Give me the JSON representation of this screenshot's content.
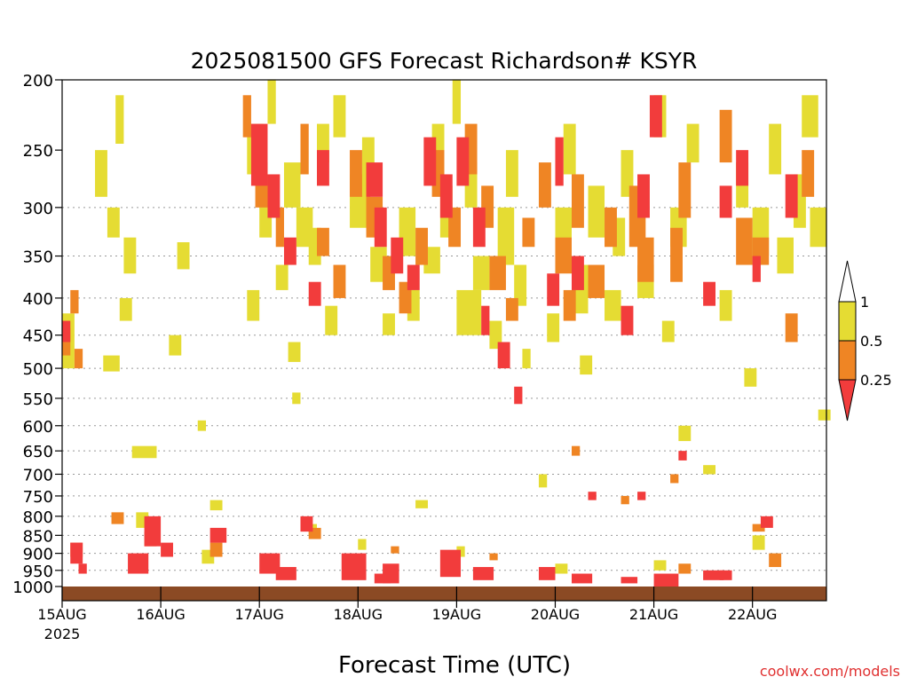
{
  "chart_data": {
    "type": "heatmap",
    "title": "2025081500 GFS Forecast Richardson# KSYR",
    "xlabel": "Forecast Time (UTC)",
    "ylabel": "",
    "credit": "coolwx.com/models",
    "x_ticks": [
      {
        "label": "15AUG",
        "sublabel": "2025",
        "hour": 0
      },
      {
        "label": "16AUG",
        "hour": 24
      },
      {
        "label": "17AUG",
        "hour": 48
      },
      {
        "label": "18AUG",
        "hour": 72
      },
      {
        "label": "19AUG",
        "hour": 96
      },
      {
        "label": "20AUG",
        "hour": 120
      },
      {
        "label": "21AUG",
        "hour": 144
      },
      {
        "label": "22AUG",
        "hour": 168
      }
    ],
    "xlim_hours": [
      0,
      186
    ],
    "y_ticks": [
      200,
      250,
      300,
      350,
      400,
      450,
      500,
      550,
      600,
      650,
      700,
      750,
      800,
      850,
      900,
      950,
      1000
    ],
    "ylim_hPa": [
      200,
      1000
    ],
    "y_scale": "log-pressure",
    "grid_levels": [
      300,
      350,
      400,
      450,
      500,
      550,
      600,
      650,
      700,
      750,
      800,
      850,
      900,
      950
    ],
    "legend": {
      "placement": "right",
      "entries": [
        {
          "label": "1",
          "color": "#ffffff"
        },
        {
          "label": "0.5",
          "color": "#e5dc33"
        },
        {
          "label": "0.25",
          "color": "#ef8524"
        },
        {
          "label": "",
          "color": "#f23c3c"
        }
      ],
      "tick_labels": [
        "1",
        "0.5",
        "0.25"
      ]
    },
    "colors": {
      "ri_lt_0_25": "#f23c3c",
      "ri_0_25_to_0_5": "#ef8524",
      "ri_0_5_to_1": "#e5dc33",
      "ground": "#8b4a24",
      "grid": "#999999"
    },
    "series": [
      {
        "name": "Ri 0.5-1",
        "color_key": "ri_0_5_to_1",
        "cells": [
          [
            0,
            420,
            3,
            80
          ],
          [
            8,
            250,
            3,
            40
          ],
          [
            11,
            300,
            3,
            30
          ],
          [
            10,
            480,
            4,
            25
          ],
          [
            13,
            210,
            2,
            35
          ],
          [
            15,
            330,
            3,
            40
          ],
          [
            14,
            400,
            3,
            30
          ],
          [
            17,
            640,
            6,
            25
          ],
          [
            26,
            450,
            3,
            30
          ],
          [
            28,
            335,
            3,
            30
          ],
          [
            33,
            590,
            2,
            20
          ],
          [
            36,
            760,
            3,
            25
          ],
          [
            45,
            230,
            4,
            40
          ],
          [
            48,
            280,
            3,
            50
          ],
          [
            45,
            390,
            3,
            40
          ],
          [
            50,
            200,
            2,
            30
          ],
          [
            52,
            360,
            3,
            30
          ],
          [
            54,
            260,
            4,
            40
          ],
          [
            55,
            460,
            3,
            30
          ],
          [
            56,
            540,
            2,
            20
          ],
          [
            60,
            320,
            3,
            40
          ],
          [
            57,
            300,
            4,
            40
          ],
          [
            62,
            230,
            3,
            30
          ],
          [
            64,
            410,
            3,
            40
          ],
          [
            70,
            270,
            5,
            50
          ],
          [
            66,
            210,
            3,
            30
          ],
          [
            73,
            240,
            3,
            40
          ],
          [
            75,
            340,
            4,
            40
          ],
          [
            78,
            420,
            3,
            30
          ],
          [
            82,
            300,
            4,
            50
          ],
          [
            84,
            390,
            3,
            40
          ],
          [
            86,
            760,
            3,
            20
          ],
          [
            90,
            230,
            3,
            30
          ],
          [
            88,
            340,
            4,
            30
          ],
          [
            92,
            280,
            3,
            50
          ],
          [
            95,
            200,
            2,
            30
          ],
          [
            96,
            390,
            6,
            60
          ],
          [
            98,
            260,
            3,
            40
          ],
          [
            100,
            350,
            4,
            40
          ],
          [
            104,
            430,
            3,
            40
          ],
          [
            106,
            300,
            4,
            60
          ],
          [
            108,
            250,
            3,
            40
          ],
          [
            110,
            360,
            3,
            50
          ],
          [
            112,
            470,
            2,
            30
          ],
          [
            116,
            700,
            2,
            30
          ],
          [
            118,
            420,
            3,
            40
          ],
          [
            120,
            300,
            4,
            50
          ],
          [
            122,
            230,
            3,
            40
          ],
          [
            124,
            360,
            4,
            60
          ],
          [
            126,
            480,
            3,
            30
          ],
          [
            128,
            280,
            4,
            50
          ],
          [
            132,
            390,
            4,
            40
          ],
          [
            134,
            310,
            3,
            40
          ],
          [
            136,
            250,
            3,
            40
          ],
          [
            140,
            360,
            4,
            40
          ],
          [
            144,
            210,
            3,
            30
          ],
          [
            146,
            430,
            3,
            30
          ],
          [
            148,
            300,
            4,
            40
          ],
          [
            150,
            600,
            3,
            30
          ],
          [
            152,
            230,
            3,
            30
          ],
          [
            156,
            680,
            3,
            20
          ],
          [
            160,
            390,
            3,
            40
          ],
          [
            164,
            260,
            3,
            40
          ],
          [
            166,
            500,
            3,
            30
          ],
          [
            168,
            300,
            4,
            50
          ],
          [
            172,
            230,
            3,
            40
          ],
          [
            174,
            330,
            4,
            40
          ],
          [
            178,
            270,
            3,
            50
          ],
          [
            180,
            210,
            4,
            30
          ],
          [
            182,
            300,
            4,
            40
          ],
          [
            184,
            570,
            3,
            20
          ],
          [
            18,
            790,
            3,
            40
          ],
          [
            34,
            890,
            3,
            40
          ],
          [
            60,
            820,
            2,
            30
          ],
          [
            72,
            860,
            2,
            30
          ],
          [
            96,
            880,
            2,
            30
          ],
          [
            120,
            930,
            3,
            30
          ],
          [
            144,
            920,
            3,
            30
          ],
          [
            168,
            850,
            3,
            40
          ]
        ]
      },
      {
        "name": "Ri 0.25-0.5",
        "color_key": "ri_0_25_to_0_5",
        "cells": [
          [
            0,
            440,
            2,
            40
          ],
          [
            2,
            390,
            2,
            30
          ],
          [
            3,
            470,
            2,
            30
          ],
          [
            44,
            210,
            2,
            30
          ],
          [
            47,
            260,
            3,
            40
          ],
          [
            52,
            300,
            2,
            40
          ],
          [
            58,
            230,
            2,
            40
          ],
          [
            62,
            320,
            3,
            30
          ],
          [
            66,
            360,
            3,
            40
          ],
          [
            70,
            250,
            3,
            40
          ],
          [
            74,
            290,
            4,
            40
          ],
          [
            78,
            350,
            3,
            40
          ],
          [
            82,
            380,
            3,
            40
          ],
          [
            86,
            320,
            3,
            40
          ],
          [
            90,
            250,
            3,
            40
          ],
          [
            94,
            300,
            3,
            40
          ],
          [
            98,
            230,
            3,
            40
          ],
          [
            102,
            280,
            3,
            40
          ],
          [
            104,
            350,
            4,
            40
          ],
          [
            108,
            400,
            3,
            30
          ],
          [
            112,
            310,
            3,
            30
          ],
          [
            116,
            260,
            3,
            40
          ],
          [
            120,
            330,
            4,
            40
          ],
          [
            122,
            390,
            3,
            40
          ],
          [
            124,
            270,
            3,
            50
          ],
          [
            128,
            360,
            4,
            40
          ],
          [
            132,
            300,
            3,
            40
          ],
          [
            138,
            280,
            4,
            60
          ],
          [
            140,
            330,
            4,
            50
          ],
          [
            148,
            320,
            3,
            60
          ],
          [
            150,
            260,
            3,
            50
          ],
          [
            160,
            220,
            3,
            40
          ],
          [
            164,
            310,
            4,
            50
          ],
          [
            168,
            330,
            4,
            30
          ],
          [
            176,
            420,
            3,
            40
          ],
          [
            180,
            250,
            3,
            40
          ],
          [
            124,
            640,
            2,
            20
          ],
          [
            136,
            750,
            2,
            20
          ],
          [
            148,
            700,
            2,
            20
          ],
          [
            168,
            820,
            3,
            20
          ],
          [
            12,
            790,
            3,
            30
          ],
          [
            60,
            830,
            3,
            30
          ],
          [
            2,
            870,
            3,
            40
          ],
          [
            20,
            840,
            3,
            40
          ],
          [
            36,
            870,
            3,
            40
          ],
          [
            80,
            880,
            2,
            20
          ],
          [
            104,
            900,
            2,
            20
          ],
          [
            150,
            930,
            3,
            30
          ],
          [
            172,
            900,
            3,
            40
          ]
        ]
      },
      {
        "name": "Ri < 0.25",
        "color_key": "ri_lt_0_25",
        "cells": [
          [
            0,
            430,
            2,
            30
          ],
          [
            2,
            870,
            3,
            60
          ],
          [
            4,
            930,
            2,
            30
          ],
          [
            20,
            800,
            4,
            80
          ],
          [
            16,
            900,
            5,
            60
          ],
          [
            24,
            870,
            3,
            40
          ],
          [
            48,
            900,
            5,
            60
          ],
          [
            52,
            940,
            5,
            40
          ],
          [
            46,
            230,
            4,
            50
          ],
          [
            50,
            270,
            3,
            40
          ],
          [
            54,
            330,
            3,
            30
          ],
          [
            60,
            380,
            3,
            30
          ],
          [
            62,
            250,
            3,
            30
          ],
          [
            74,
            260,
            4,
            30
          ],
          [
            76,
            300,
            3,
            40
          ],
          [
            80,
            330,
            3,
            40
          ],
          [
            84,
            360,
            3,
            30
          ],
          [
            88,
            240,
            3,
            40
          ],
          [
            92,
            270,
            3,
            40
          ],
          [
            96,
            240,
            3,
            40
          ],
          [
            100,
            300,
            3,
            40
          ],
          [
            102,
            410,
            2,
            40
          ],
          [
            106,
            460,
            3,
            40
          ],
          [
            110,
            530,
            2,
            30
          ],
          [
            118,
            370,
            3,
            40
          ],
          [
            120,
            240,
            2,
            40
          ],
          [
            124,
            350,
            3,
            40
          ],
          [
            136,
            410,
            3,
            40
          ],
          [
            140,
            270,
            3,
            40
          ],
          [
            143,
            210,
            3,
            30
          ],
          [
            156,
            380,
            3,
            30
          ],
          [
            160,
            280,
            3,
            30
          ],
          [
            164,
            250,
            3,
            30
          ],
          [
            168,
            350,
            2,
            30
          ],
          [
            176,
            270,
            3,
            40
          ],
          [
            68,
            900,
            6,
            80
          ],
          [
            78,
            930,
            4,
            60
          ],
          [
            92,
            890,
            5,
            80
          ],
          [
            100,
            940,
            5,
            40
          ],
          [
            116,
            940,
            4,
            40
          ],
          [
            124,
            960,
            5,
            30
          ],
          [
            136,
            970,
            4,
            20
          ],
          [
            144,
            960,
            6,
            40
          ],
          [
            156,
            950,
            5,
            30
          ],
          [
            170,
            800,
            3,
            30
          ],
          [
            36,
            830,
            4,
            40
          ],
          [
            58,
            800,
            3,
            40
          ],
          [
            76,
            960,
            4,
            30
          ],
          [
            128,
            740,
            2,
            20
          ],
          [
            140,
            740,
            2,
            20
          ],
          [
            150,
            650,
            2,
            20
          ],
          [
            160,
            950,
            3,
            30
          ]
        ]
      }
    ]
  }
}
